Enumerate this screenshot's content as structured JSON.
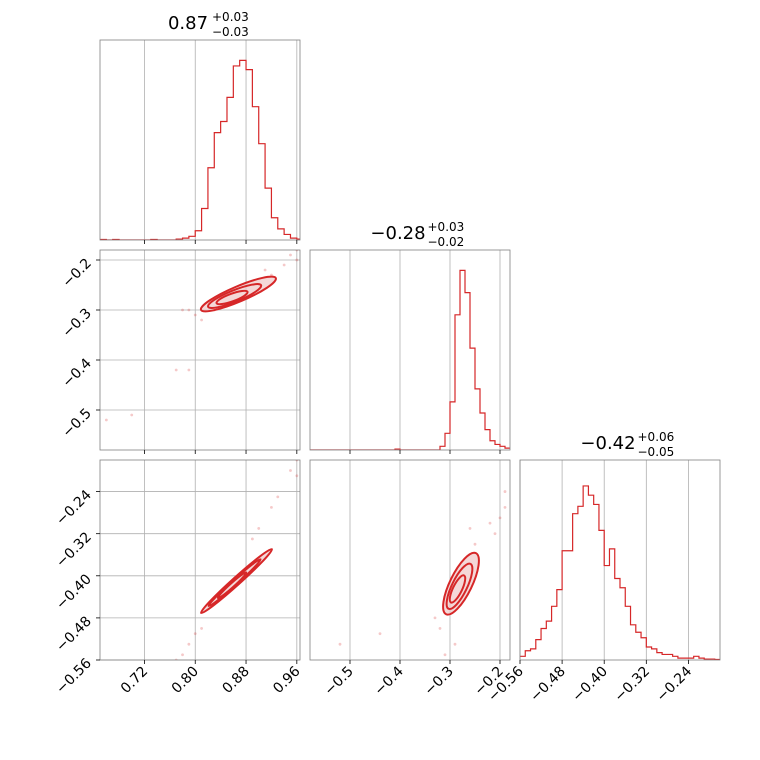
{
  "colors": {
    "accent": "#d62728",
    "grid": "#b0b0b0",
    "frame": "#808080",
    "contour_fill": "#f0c8c8"
  },
  "chart_data": {
    "type": "corner",
    "grid": true,
    "panels": [
      {
        "kind": "histogram",
        "row": 0,
        "col": 0,
        "title": {
          "median": "0.87",
          "plus": "+0.03",
          "minus": "−0.03"
        },
        "xlim": [
          0.65,
          0.965
        ],
        "ylim": [
          0,
          1.08
        ],
        "bins": [
          0.65,
          0.66,
          0.67,
          0.68,
          0.69,
          0.7,
          0.71,
          0.72,
          0.73,
          0.74,
          0.75,
          0.76,
          0.77,
          0.78,
          0.79,
          0.8,
          0.81,
          0.82,
          0.83,
          0.84,
          0.85,
          0.86,
          0.87,
          0.88,
          0.89,
          0.9,
          0.91,
          0.92,
          0.93,
          0.94,
          0.95,
          0.96
        ],
        "values": [
          0.003,
          0,
          0.003,
          0,
          0,
          0,
          0,
          0,
          0.003,
          0,
          0,
          0,
          0.005,
          0.01,
          0.02,
          0.05,
          0.17,
          0.39,
          0.58,
          0.64,
          0.77,
          0.94,
          0.97,
          0.92,
          0.72,
          0.52,
          0.28,
          0.12,
          0.06,
          0.03,
          0.01,
          0.005
        ],
        "xticks": [
          0.72,
          0.8,
          0.88,
          0.96
        ]
      },
      {
        "kind": "histogram",
        "row": 1,
        "col": 1,
        "title": {
          "median": "−0.28",
          "plus": "+0.03",
          "minus": "−0.02"
        },
        "xlim": [
          -0.58,
          -0.18
        ],
        "ylim": [
          0,
          1.08
        ],
        "bins": [
          -0.58,
          -0.57,
          -0.56,
          -0.55,
          -0.54,
          -0.53,
          -0.52,
          -0.51,
          -0.5,
          -0.49,
          -0.48,
          -0.47,
          -0.46,
          -0.45,
          -0.44,
          -0.43,
          -0.42,
          -0.41,
          -0.4,
          -0.39,
          -0.38,
          -0.37,
          -0.36,
          -0.35,
          -0.34,
          -0.33,
          -0.32,
          -0.31,
          -0.3,
          -0.29,
          -0.28,
          -0.27,
          -0.26,
          -0.25,
          -0.24,
          -0.23,
          -0.22,
          -0.21,
          -0.2,
          -0.19,
          -0.18
        ],
        "values": [
          0,
          0,
          0,
          0,
          0,
          0,
          0,
          0,
          0,
          0,
          0,
          0,
          0,
          0,
          0,
          0,
          0,
          0.005,
          0,
          0,
          0,
          0,
          0,
          0,
          0,
          0,
          0.02,
          0.09,
          0.26,
          0.73,
          0.97,
          0.85,
          0.55,
          0.33,
          0.2,
          0.11,
          0.05,
          0.03,
          0.02,
          0.01
        ],
        "xticks": [
          -0.5,
          -0.4,
          -0.3,
          -0.2
        ]
      },
      {
        "kind": "histogram",
        "row": 2,
        "col": 2,
        "title": {
          "median": "−0.42",
          "plus": "+0.06",
          "minus": "−0.05"
        },
        "xlim": [
          -0.56,
          -0.18
        ],
        "ylim": [
          0,
          1.08
        ],
        "bins": [
          -0.56,
          -0.55,
          -0.54,
          -0.53,
          -0.52,
          -0.51,
          -0.5,
          -0.49,
          -0.48,
          -0.47,
          -0.46,
          -0.45,
          -0.44,
          -0.43,
          -0.42,
          -0.41,
          -0.4,
          -0.39,
          -0.38,
          -0.37,
          -0.36,
          -0.35,
          -0.34,
          -0.33,
          -0.32,
          -0.31,
          -0.3,
          -0.29,
          -0.28,
          -0.27,
          -0.26,
          -0.25,
          -0.24,
          -0.23,
          -0.22,
          -0.21,
          -0.2,
          -0.19,
          -0.18
        ],
        "values": [
          0.02,
          0.05,
          0.06,
          0.11,
          0.17,
          0.21,
          0.29,
          0.38,
          0.59,
          0.59,
          0.79,
          0.83,
          0.94,
          0.89,
          0.84,
          0.7,
          0.51,
          0.6,
          0.44,
          0.39,
          0.29,
          0.19,
          0.15,
          0.12,
          0.07,
          0.06,
          0.04,
          0.03,
          0.03,
          0.02,
          0.01,
          0.01,
          0.01,
          0.02,
          0.01,
          0.005,
          0.005,
          0.003
        ],
        "xticks": [
          -0.56,
          -0.48,
          -0.4,
          -0.32,
          -0.24
        ]
      },
      {
        "kind": "contour",
        "row": 1,
        "col": 0,
        "xlim": [
          0.65,
          0.965
        ],
        "ylim": [
          -0.58,
          -0.18
        ],
        "xticks": [
          0.72,
          0.8,
          0.88,
          0.96
        ],
        "yticks": [
          -0.5,
          -0.4,
          -0.3,
          -0.2
        ],
        "ellipses": [
          {
            "cx": 0.868,
            "cy": -0.268,
            "rx": 0.064,
            "ry": 0.012,
            "angle_deg": -23
          },
          {
            "cx": 0.862,
            "cy": -0.272,
            "rx": 0.045,
            "ry": 0.009,
            "angle_deg": -22
          },
          {
            "cx": 0.858,
            "cy": -0.275,
            "rx": 0.026,
            "ry": 0.006,
            "angle_deg": -20
          }
        ],
        "points": [
          [
            0.7,
            -0.51
          ],
          [
            0.66,
            -0.52
          ],
          [
            0.77,
            -0.42
          ],
          [
            0.79,
            -0.42
          ],
          [
            0.79,
            -0.3
          ],
          [
            0.8,
            -0.31
          ],
          [
            0.81,
            -0.32
          ],
          [
            0.95,
            -0.19
          ],
          [
            0.96,
            -0.2
          ],
          [
            0.94,
            -0.21
          ],
          [
            0.92,
            -0.23
          ],
          [
            0.83,
            -0.3
          ],
          [
            0.91,
            -0.22
          ],
          [
            0.78,
            -0.3
          ],
          [
            0.96,
            -0.18
          ]
        ]
      },
      {
        "kind": "contour",
        "row": 2,
        "col": 0,
        "xlim": [
          0.65,
          0.965
        ],
        "ylim": [
          -0.56,
          -0.18
        ],
        "xticks": [
          0.72,
          0.8,
          0.88,
          0.96
        ],
        "yticks": [
          -0.56,
          -0.48,
          -0.4,
          -0.32,
          -0.24
        ],
        "ellipses": [
          {
            "cx": 0.865,
            "cy": -0.41,
            "rx": 0.075,
            "ry": 0.006,
            "angle_deg": -42
          },
          {
            "cx": 0.862,
            "cy": -0.413,
            "rx": 0.055,
            "ry": 0.004,
            "angle_deg": -42
          },
          {
            "cx": 0.858,
            "cy": -0.418,
            "rx": 0.03,
            "ry": 0.003,
            "angle_deg": -42
          }
        ],
        "points": [
          [
            0.95,
            -0.2
          ],
          [
            0.96,
            -0.18
          ],
          [
            0.93,
            -0.25
          ],
          [
            0.92,
            -0.27
          ],
          [
            0.79,
            -0.53
          ],
          [
            0.78,
            -0.55
          ],
          [
            0.8,
            -0.51
          ],
          [
            0.81,
            -0.5
          ],
          [
            0.77,
            -0.56
          ],
          [
            0.89,
            -0.33
          ],
          [
            0.9,
            -0.31
          ],
          [
            0.96,
            -0.21
          ]
        ]
      },
      {
        "kind": "contour",
        "row": 2,
        "col": 1,
        "xlim": [
          -0.58,
          -0.18
        ],
        "ylim": [
          -0.56,
          -0.18
        ],
        "xticks": [
          -0.5,
          -0.4,
          -0.3,
          -0.2
        ],
        "yticks": [],
        "ellipses": [
          {
            "cx": -0.278,
            "cy": -0.415,
            "rx": 0.068,
            "ry": 0.022,
            "angle_deg": -64
          },
          {
            "cx": -0.281,
            "cy": -0.42,
            "rx": 0.05,
            "ry": 0.015,
            "angle_deg": -64
          },
          {
            "cx": -0.285,
            "cy": -0.425,
            "rx": 0.03,
            "ry": 0.009,
            "angle_deg": -64
          }
        ],
        "points": [
          [
            -0.44,
            -0.51
          ],
          [
            -0.52,
            -0.53
          ],
          [
            -0.31,
            -0.55
          ],
          [
            -0.2,
            -0.29
          ],
          [
            -0.21,
            -0.32
          ],
          [
            -0.19,
            -0.27
          ],
          [
            -0.26,
            -0.31
          ],
          [
            -0.32,
            -0.5
          ],
          [
            -0.29,
            -0.53
          ],
          [
            -0.22,
            -0.3
          ],
          [
            -0.25,
            -0.34
          ],
          [
            -0.33,
            -0.48
          ],
          [
            -0.19,
            -0.24
          ]
        ]
      }
    ]
  }
}
